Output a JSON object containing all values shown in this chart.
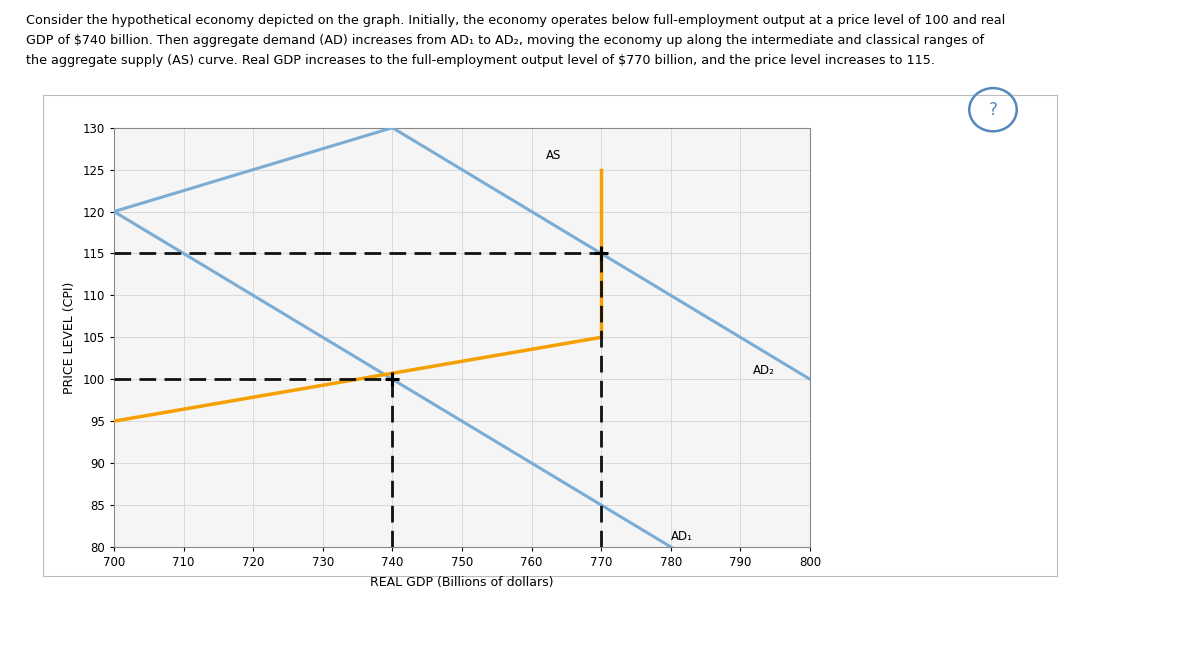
{
  "xlim": [
    700,
    800
  ],
  "ylim": [
    80,
    130
  ],
  "xticks": [
    700,
    710,
    720,
    730,
    740,
    750,
    760,
    770,
    780,
    790,
    800
  ],
  "yticks": [
    80,
    85,
    90,
    95,
    100,
    105,
    110,
    115,
    120,
    125,
    130
  ],
  "xlabel": "REAL GDP (Billions of dollars)",
  "ylabel": "PRICE LEVEL (CPI)",
  "ad_color": "#7aacd4",
  "as_blue_color": "#7aacd4",
  "as_orange_color": "#F5A000",
  "dashed_color": "#111111",
  "bg_color": "#ffffff",
  "grid_color": "#d5d5d5",
  "chart_bg": "#f5f5f5",
  "top_bar_color": "#d4c89a",
  "ad1_slope": -1.0,
  "ad1_pt_x": 740,
  "ad1_pt_y": 100,
  "ad2_slope": -1.0,
  "ad2_pt_x": 770,
  "ad2_pt_y": 115,
  "as_blue_x1": 700,
  "as_blue_y1": 120,
  "as_blue_x2": 740,
  "as_blue_y2": 130,
  "as_int_x1": 700,
  "as_int_y1": 95,
  "as_int_x2": 770,
  "as_int_y2": 105,
  "as_cls_x": 770,
  "as_cls_y1": 105,
  "as_cls_y2": 125,
  "int1_x": 740,
  "int1_y": 100,
  "int2_x": 770,
  "int2_y": 115,
  "desc_line1": "Consider the hypothetical economy depicted on the graph. Initially, the economy operates below full-employment output at a price level of 100 and real",
  "desc_line2": "GDP of $740 billion. Then aggregate demand (AD) increases from AD₁ to AD₂, moving the economy up along the intermediate and classical ranges of",
  "desc_line3": "the aggregate supply (AS) curve. Real GDP increases to the full-employment output level of $770 billion, and the price level increases to 115."
}
